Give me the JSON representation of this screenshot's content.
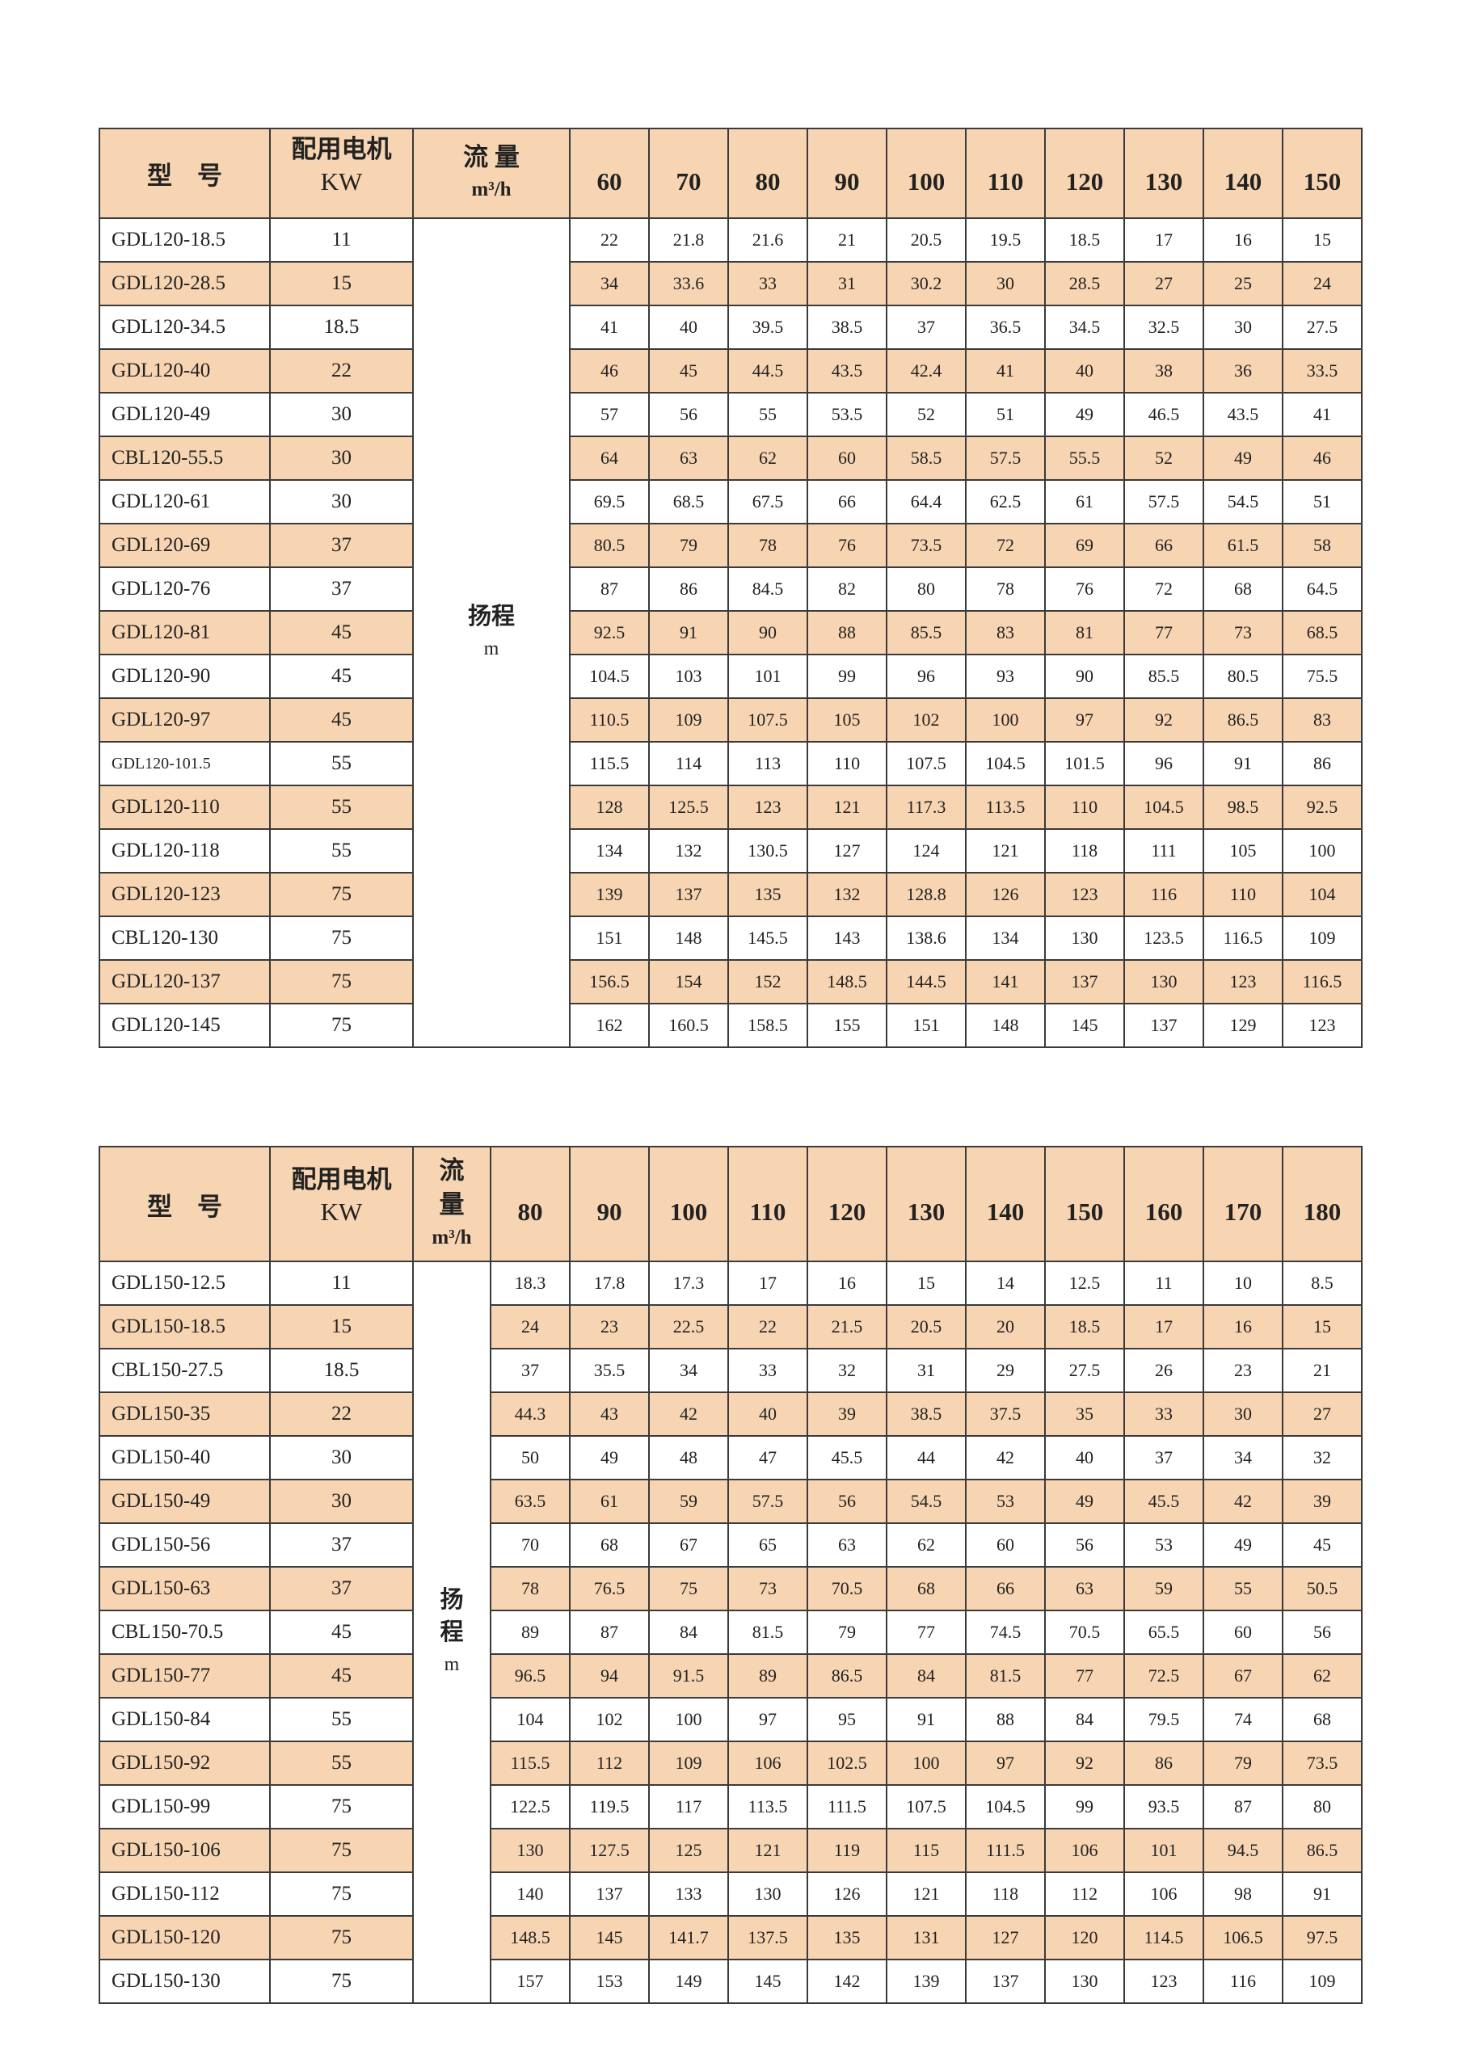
{
  "colors": {
    "header_fill": "#f8d5b2",
    "alt_row_fill": "#f8d5b2",
    "border": "#3a3a3a"
  },
  "table1": {
    "header": {
      "model": "型　号",
      "motor": "配用电机",
      "motor_unit": "KW",
      "flow": "流 量",
      "flow_unit": "m³/h"
    },
    "head_label": "扬程",
    "head_unit": "m",
    "flows": [
      "60",
      "70",
      "80",
      "90",
      "100",
      "110",
      "120",
      "130",
      "140",
      "150"
    ],
    "rows": [
      {
        "model": "GDL120-18.5",
        "kw": "11",
        "values": [
          "22",
          "21.8",
          "21.6",
          "21",
          "20.5",
          "19.5",
          "18.5",
          "17",
          "16",
          "15"
        ]
      },
      {
        "model": "GDL120-28.5",
        "kw": "15",
        "values": [
          "34",
          "33.6",
          "33",
          "31",
          "30.2",
          "30",
          "28.5",
          "27",
          "25",
          "24"
        ]
      },
      {
        "model": "GDL120-34.5",
        "kw": "18.5",
        "values": [
          "41",
          "40",
          "39.5",
          "38.5",
          "37",
          "36.5",
          "34.5",
          "32.5",
          "30",
          "27.5"
        ]
      },
      {
        "model": "GDL120-40",
        "kw": "22",
        "values": [
          "46",
          "45",
          "44.5",
          "43.5",
          "42.4",
          "41",
          "40",
          "38",
          "36",
          "33.5"
        ]
      },
      {
        "model": "GDL120-49",
        "kw": "30",
        "values": [
          "57",
          "56",
          "55",
          "53.5",
          "52",
          "51",
          "49",
          "46.5",
          "43.5",
          "41"
        ]
      },
      {
        "model": "CBL120-55.5",
        "kw": "30",
        "values": [
          "64",
          "63",
          "62",
          "60",
          "58.5",
          "57.5",
          "55.5",
          "52",
          "49",
          "46"
        ]
      },
      {
        "model": "GDL120-61",
        "kw": "30",
        "values": [
          "69.5",
          "68.5",
          "67.5",
          "66",
          "64.4",
          "62.5",
          "61",
          "57.5",
          "54.5",
          "51"
        ]
      },
      {
        "model": "GDL120-69",
        "kw": "37",
        "values": [
          "80.5",
          "79",
          "78",
          "76",
          "73.5",
          "72",
          "69",
          "66",
          "61.5",
          "58"
        ]
      },
      {
        "model": "GDL120-76",
        "kw": "37",
        "values": [
          "87",
          "86",
          "84.5",
          "82",
          "80",
          "78",
          "76",
          "72",
          "68",
          "64.5"
        ]
      },
      {
        "model": "GDL120-81",
        "kw": "45",
        "values": [
          "92.5",
          "91",
          "90",
          "88",
          "85.5",
          "83",
          "81",
          "77",
          "73",
          "68.5"
        ]
      },
      {
        "model": "GDL120-90",
        "kw": "45",
        "values": [
          "104.5",
          "103",
          "101",
          "99",
          "96",
          "93",
          "90",
          "85.5",
          "80.5",
          "75.5"
        ]
      },
      {
        "model": "GDL120-97",
        "kw": "45",
        "values": [
          "110.5",
          "109",
          "107.5",
          "105",
          "102",
          "100",
          "97",
          "92",
          "86.5",
          "83"
        ]
      },
      {
        "model": "GDL120-101.5",
        "kw": "55",
        "values": [
          "115.5",
          "114",
          "113",
          "110",
          "107.5",
          "104.5",
          "101.5",
          "96",
          "91",
          "86"
        ]
      },
      {
        "model": "GDL120-110",
        "kw": "55",
        "values": [
          "128",
          "125.5",
          "123",
          "121",
          "117.3",
          "113.5",
          "110",
          "104.5",
          "98.5",
          "92.5"
        ]
      },
      {
        "model": "GDL120-118",
        "kw": "55",
        "values": [
          "134",
          "132",
          "130.5",
          "127",
          "124",
          "121",
          "118",
          "111",
          "105",
          "100"
        ]
      },
      {
        "model": "GDL120-123",
        "kw": "75",
        "values": [
          "139",
          "137",
          "135",
          "132",
          "128.8",
          "126",
          "123",
          "116",
          "110",
          "104"
        ]
      },
      {
        "model": "CBL120-130",
        "kw": "75",
        "values": [
          "151",
          "148",
          "145.5",
          "143",
          "138.6",
          "134",
          "130",
          "123.5",
          "116.5",
          "109"
        ]
      },
      {
        "model": "GDL120-137",
        "kw": "75",
        "values": [
          "156.5",
          "154",
          "152",
          "148.5",
          "144.5",
          "141",
          "137",
          "130",
          "123",
          "116.5"
        ]
      },
      {
        "model": "GDL120-145",
        "kw": "75",
        "values": [
          "162",
          "160.5",
          "158.5",
          "155",
          "151",
          "148",
          "145",
          "137",
          "129",
          "123"
        ]
      }
    ]
  },
  "table2": {
    "header": {
      "model": "型　号",
      "motor": "配用电机",
      "motor_unit": "KW",
      "flow": "流量",
      "flow_unit": "m³/h"
    },
    "head_label": "扬程",
    "head_unit": "m",
    "flows": [
      "80",
      "90",
      "100",
      "110",
      "120",
      "130",
      "140",
      "150",
      "160",
      "170",
      "180"
    ],
    "rows": [
      {
        "model": "GDL150-12.5",
        "kw": "11",
        "values": [
          "18.3",
          "17.8",
          "17.3",
          "17",
          "16",
          "15",
          "14",
          "12.5",
          "11",
          "10",
          "8.5"
        ]
      },
      {
        "model": "GDL150-18.5",
        "kw": "15",
        "values": [
          "24",
          "23",
          "22.5",
          "22",
          "21.5",
          "20.5",
          "20",
          "18.5",
          "17",
          "16",
          "15"
        ]
      },
      {
        "model": "CBL150-27.5",
        "kw": "18.5",
        "values": [
          "37",
          "35.5",
          "34",
          "33",
          "32",
          "31",
          "29",
          "27.5",
          "26",
          "23",
          "21"
        ]
      },
      {
        "model": "GDL150-35",
        "kw": "22",
        "values": [
          "44.3",
          "43",
          "42",
          "40",
          "39",
          "38.5",
          "37.5",
          "35",
          "33",
          "30",
          "27"
        ]
      },
      {
        "model": "GDL150-40",
        "kw": "30",
        "values": [
          "50",
          "49",
          "48",
          "47",
          "45.5",
          "44",
          "42",
          "40",
          "37",
          "34",
          "32"
        ]
      },
      {
        "model": "GDL150-49",
        "kw": "30",
        "values": [
          "63.5",
          "61",
          "59",
          "57.5",
          "56",
          "54.5",
          "53",
          "49",
          "45.5",
          "42",
          "39"
        ]
      },
      {
        "model": "GDL150-56",
        "kw": "37",
        "values": [
          "70",
          "68",
          "67",
          "65",
          "63",
          "62",
          "60",
          "56",
          "53",
          "49",
          "45"
        ]
      },
      {
        "model": "GDL150-63",
        "kw": "37",
        "values": [
          "78",
          "76.5",
          "75",
          "73",
          "70.5",
          "68",
          "66",
          "63",
          "59",
          "55",
          "50.5"
        ]
      },
      {
        "model": "CBL150-70.5",
        "kw": "45",
        "values": [
          "89",
          "87",
          "84",
          "81.5",
          "79",
          "77",
          "74.5",
          "70.5",
          "65.5",
          "60",
          "56"
        ]
      },
      {
        "model": "GDL150-77",
        "kw": "45",
        "values": [
          "96.5",
          "94",
          "91.5",
          "89",
          "86.5",
          "84",
          "81.5",
          "77",
          "72.5",
          "67",
          "62"
        ]
      },
      {
        "model": "GDL150-84",
        "kw": "55",
        "values": [
          "104",
          "102",
          "100",
          "97",
          "95",
          "91",
          "88",
          "84",
          "79.5",
          "74",
          "68"
        ]
      },
      {
        "model": "GDL150-92",
        "kw": "55",
        "values": [
          "115.5",
          "112",
          "109",
          "106",
          "102.5",
          "100",
          "97",
          "92",
          "86",
          "79",
          "73.5"
        ]
      },
      {
        "model": "GDL150-99",
        "kw": "75",
        "values": [
          "122.5",
          "119.5",
          "117",
          "113.5",
          "111.5",
          "107.5",
          "104.5",
          "99",
          "93.5",
          "87",
          "80"
        ]
      },
      {
        "model": "GDL150-106",
        "kw": "75",
        "values": [
          "130",
          "127.5",
          "125",
          "121",
          "119",
          "115",
          "111.5",
          "106",
          "101",
          "94.5",
          "86.5"
        ]
      },
      {
        "model": "GDL150-112",
        "kw": "75",
        "values": [
          "140",
          "137",
          "133",
          "130",
          "126",
          "121",
          "118",
          "112",
          "106",
          "98",
          "91"
        ]
      },
      {
        "model": "GDL150-120",
        "kw": "75",
        "values": [
          "148.5",
          "145",
          "141.7",
          "137.5",
          "135",
          "131",
          "127",
          "120",
          "114.5",
          "106.5",
          "97.5"
        ]
      },
      {
        "model": "GDL150-130",
        "kw": "75",
        "values": [
          "157",
          "153",
          "149",
          "145",
          "142",
          "139",
          "137",
          "130",
          "123",
          "116",
          "109"
        ]
      }
    ]
  }
}
